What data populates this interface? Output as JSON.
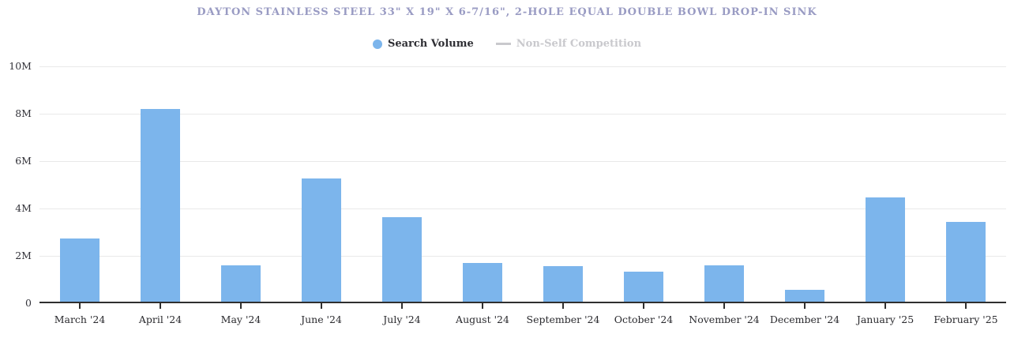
{
  "header": {
    "title": "DAYTON STAINLESS STEEL 33\" X 19\" X 6-7/16\", 2-HOLE EQUAL DOUBLE BOWL DROP-IN SINK",
    "title_color": "#999BC3"
  },
  "legend": {
    "items": [
      {
        "label": "Search Volume",
        "symbol": "circle",
        "color": "#7CB5EC",
        "active": true
      },
      {
        "label": "Non-Self Competition",
        "symbol": "line",
        "color": "#C9C9CD",
        "active": false
      }
    ]
  },
  "chart_data": {
    "type": "bar",
    "title": "DAYTON STAINLESS STEEL 33\" X 19\" X 6-7/16\", 2-HOLE EQUAL DOUBLE BOWL DROP-IN SINK",
    "categories": [
      "March '24",
      "April '24",
      "May '24",
      "June '24",
      "July '24",
      "August '24",
      "September '24",
      "October '24",
      "November '24",
      "December '24",
      "January '25",
      "February '25"
    ],
    "series": [
      {
        "name": "Search Volume",
        "color": "#7CB5EC",
        "values_millions": [
          2.7,
          8.2,
          1.55,
          5.25,
          3.6,
          1.63,
          1.52,
          1.27,
          1.55,
          0.5,
          4.43,
          3.39
        ]
      },
      {
        "name": "Non-Self Competition",
        "color": "#C9C9CD",
        "hidden": true,
        "values_millions": []
      }
    ],
    "ylabel": "",
    "xlabel": "",
    "ylim_millions": [
      0,
      10
    ],
    "ytick_labels": [
      "10M",
      "8M",
      "6M",
      "4M",
      "2M",
      "0"
    ],
    "ytick_interval_millions": 2,
    "grid": "horizontal-on",
    "legend_position": "top-center",
    "axis_line_color": "#2F2F2F",
    "gridline_color": "#E9E9E9"
  }
}
